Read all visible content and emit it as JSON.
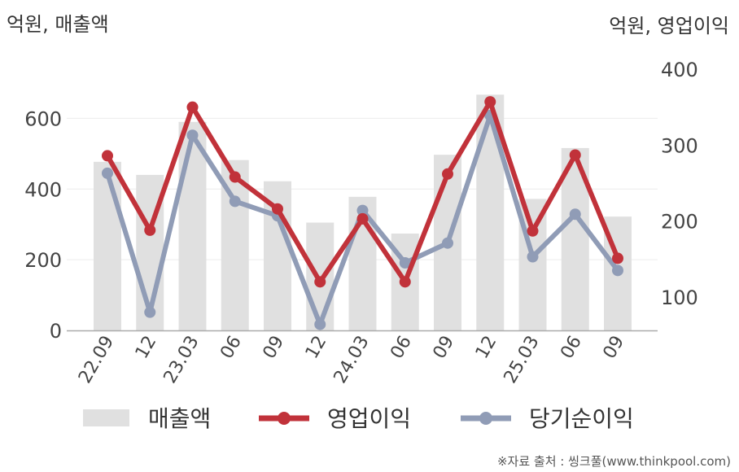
{
  "chart_data": {
    "type": "bar+line",
    "left_axis_title": "억원, 매출액",
    "right_axis_title": "억원, 영업이익",
    "categories": [
      "22.09",
      "12",
      "23.03",
      "06",
      "09",
      "12",
      "24.03",
      "06",
      "09",
      "12",
      "25.03",
      "06",
      "09"
    ],
    "left_axis": {
      "min": 0,
      "max": 700,
      "ticks": [
        0,
        200,
        400,
        600
      ]
    },
    "right_axis": {
      "min": 55,
      "max": 425,
      "ticks": [
        100,
        200,
        300,
        400
      ]
    },
    "series": [
      {
        "name": "매출액",
        "type": "bar",
        "axis": "left",
        "color": "#e0e0e0",
        "values": [
          477,
          440,
          590,
          482,
          422,
          305,
          378,
          274,
          497,
          667,
          372,
          516,
          322
        ]
      },
      {
        "name": "영업이익",
        "type": "line",
        "axis": "right",
        "color": "#c1323a",
        "values": [
          286,
          188,
          350,
          258,
          216,
          120,
          203,
          120,
          262,
          357,
          187,
          287,
          151
        ]
      },
      {
        "name": "당기순이익",
        "type": "line",
        "axis": "right",
        "color": "#909cb6",
        "values": [
          263,
          80,
          313,
          226,
          207,
          64,
          214,
          145,
          171,
          339,
          153,
          209,
          135
        ]
      }
    ],
    "grid": true,
    "legend": "bottom"
  },
  "source": "※자료 출처 : 씽크풀(www.thinkpool.com)"
}
